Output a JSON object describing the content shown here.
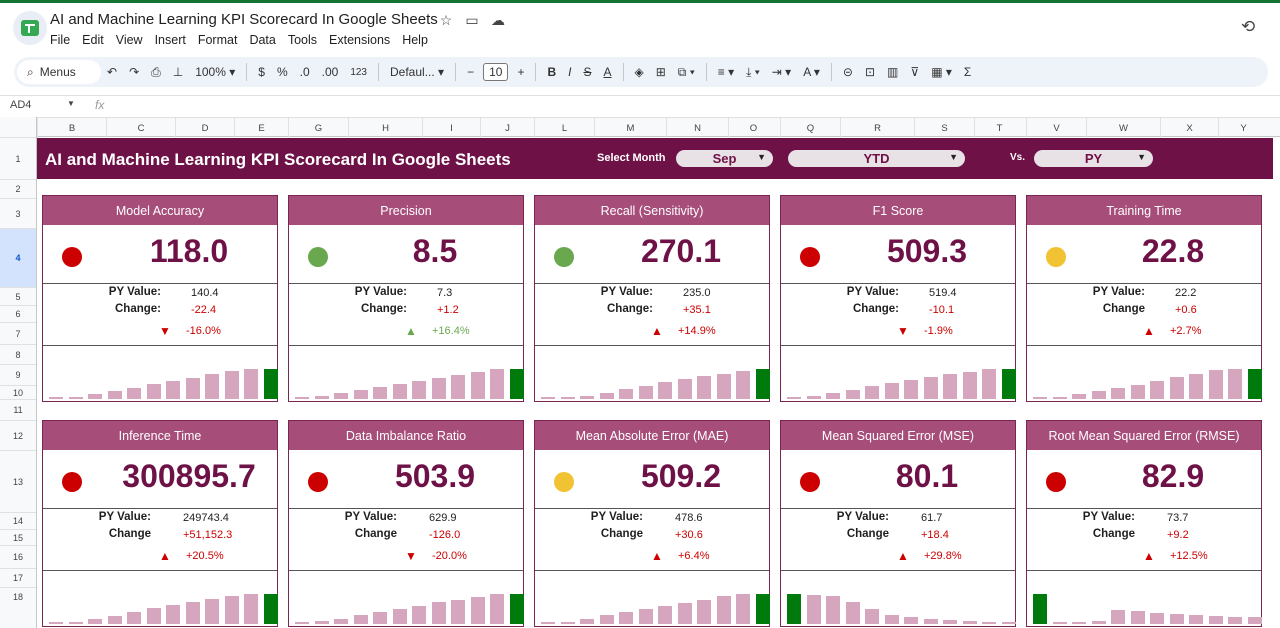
{
  "window": {
    "title": "AI and Machine Learning KPI Scorecard In Google Sheets"
  },
  "menu": [
    "File",
    "Edit",
    "View",
    "Insert",
    "Format",
    "Data",
    "Tools",
    "Extensions",
    "Help"
  ],
  "toolbar": {
    "search_label": "Menus",
    "zoom": "100%",
    "currency": "$",
    "percent": "%",
    "dec_less": ".0",
    "dec_more": ".00",
    "number_format": "123",
    "font": "Defaul...",
    "font_size": "10"
  },
  "formula_bar": {
    "cell_ref": "AD4",
    "fx": "fx"
  },
  "columns": [
    "B",
    "C",
    "D",
    "E",
    "G",
    "H",
    "I",
    "J",
    "L",
    "M",
    "N",
    "O",
    "Q",
    "R",
    "S",
    "T",
    "V",
    "W",
    "X",
    "Y"
  ],
  "rows": [
    "1",
    "2",
    "3",
    "4",
    "5",
    "6",
    "7",
    "8",
    "9",
    "10",
    "11",
    "12",
    "13",
    "14",
    "15",
    "16",
    "17",
    "18"
  ],
  "selected_row": "4",
  "dashboard": {
    "title": "AI and Machine Learning KPI Scorecard In Google Sheets",
    "select_month_label": "Select Month",
    "month": "Sep",
    "period": "YTD",
    "vs_label": "Vs.",
    "compare": "PY"
  },
  "colors": {
    "banner": "#6e1146",
    "card_header": "#a64d79",
    "value": "#6e1146",
    "bar": "#d5a6bd",
    "bar_current": "#007a0c",
    "red": "#cc0000",
    "green": "#6aa84f",
    "yellow": "#f1c232"
  },
  "cards": [
    {
      "name": "Model Accuracy",
      "value": "118.0",
      "status": "red",
      "py_label": "PY Value:",
      "py": "140.4",
      "change_label": "Change:",
      "change": "-22.4",
      "dir": "down",
      "pct": "-16.0%",
      "pct_color": "red",
      "trend": [
        0.04,
        0.06,
        0.16,
        0.27,
        0.38,
        0.49,
        0.6,
        0.71,
        0.82,
        0.93,
        1.0,
        1.0
      ]
    },
    {
      "name": "Precision",
      "value": "8.5",
      "status": "green",
      "py_label": "PY Value:",
      "py": "7.3",
      "change_label": "Change:",
      "change": "+1.2",
      "dir": "up",
      "pct": "+16.4%",
      "pct_color": "green",
      "trend": [
        0.04,
        0.1,
        0.2,
        0.3,
        0.4,
        0.5,
        0.6,
        0.7,
        0.8,
        0.9,
        1.0,
        1.0
      ]
    },
    {
      "name": "Recall (Sensitivity)",
      "value": "270.1",
      "status": "green",
      "py_label": "PY Value:",
      "py": "235.0",
      "change_label": "Change:",
      "change": "+35.1",
      "dir": "up",
      "pct": "+14.9%",
      "pct_color": "red",
      "trend": [
        0.03,
        0.05,
        0.1,
        0.2,
        0.32,
        0.44,
        0.56,
        0.68,
        0.76,
        0.84,
        0.94,
        1.0
      ]
    },
    {
      "name": "F1 Score",
      "value": "509.3",
      "status": "red",
      "py_label": "PY Value:",
      "py": "519.4",
      "change_label": "Change:",
      "change": "-10.1",
      "dir": "down",
      "pct": "-1.9%",
      "pct_color": "red",
      "trend": [
        0.03,
        0.1,
        0.2,
        0.3,
        0.42,
        0.52,
        0.62,
        0.72,
        0.82,
        0.9,
        1.0,
        1.0
      ]
    },
    {
      "name": "Training Time",
      "value": "22.8",
      "status": "yellow",
      "py_label": "PY Value:",
      "py": "22.2",
      "change_label": "Change",
      "change": "+0.6",
      "dir": "up",
      "pct": "+2.7%",
      "pct_color": "red",
      "trend": [
        0.04,
        0.06,
        0.16,
        0.28,
        0.38,
        0.48,
        0.6,
        0.72,
        0.84,
        0.96,
        1.0,
        1.0
      ]
    },
    {
      "name": "Inference Time",
      "value": "300895.7",
      "status": "red",
      "py_label": "PY Value:",
      "py": "249743.4",
      "change_label": "Change",
      "change": "+51,152.3",
      "dir": "up",
      "pct": "+20.5%",
      "pct_color": "red",
      "trend": [
        0.03,
        0.08,
        0.18,
        0.28,
        0.4,
        0.52,
        0.62,
        0.72,
        0.82,
        0.92,
        1.0,
        1.0
      ]
    },
    {
      "name": "Data Imbalance Ratio",
      "value": "503.9",
      "status": "red",
      "py_label": "PY Value:",
      "py": "629.9",
      "change_label": "Change",
      "change": "-126.0",
      "dir": "down",
      "pct": "-20.0%",
      "pct_color": "red",
      "trend": [
        0.03,
        0.1,
        0.18,
        0.3,
        0.4,
        0.5,
        0.6,
        0.72,
        0.8,
        0.9,
        1.0,
        1.0
      ]
    },
    {
      "name": "Mean Absolute Error (MAE)",
      "value": "509.2",
      "status": "yellow",
      "py_label": "PY Value:",
      "py": "478.6",
      "change_label": "Change",
      "change": "+30.6",
      "dir": "up",
      "pct": "+6.4%",
      "pct_color": "red",
      "trend": [
        0.03,
        0.08,
        0.18,
        0.3,
        0.4,
        0.5,
        0.6,
        0.7,
        0.8,
        0.92,
        1.0,
        1.0
      ]
    },
    {
      "name": "Mean Squared Error (MSE)",
      "value": "80.1",
      "status": "red",
      "py_label": "PY Value:",
      "py": "61.7",
      "change_label": "Change",
      "change": "+18.4",
      "dir": "up",
      "pct": "+29.8%",
      "pct_color": "red",
      "trend": [
        1.0,
        0.98,
        0.94,
        0.72,
        0.5,
        0.3,
        0.22,
        0.18,
        0.14,
        0.1,
        0.08,
        0.05
      ]
    },
    {
      "name": "Root Mean Squared Error (RMSE)",
      "value": "82.9",
      "status": "red",
      "py_label": "PY Value:",
      "py": "73.7",
      "change_label": "Change",
      "change": "+9.2",
      "dir": "up",
      "pct": "+12.5%",
      "pct_color": "red",
      "trend": [
        1.0,
        0.05,
        0.06,
        0.1,
        0.46,
        0.42,
        0.38,
        0.34,
        0.3,
        0.26,
        0.22,
        0.22
      ]
    }
  ]
}
